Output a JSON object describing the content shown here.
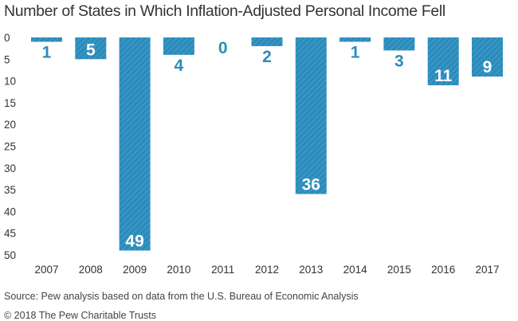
{
  "title": "Number of States in Which Inflation-Adjusted Personal Income Fell",
  "source": "Source: Pew analysis based on data from the U.S. Bureau of Economic Analysis",
  "copyright": "© 2018 The Pew Charitable Trusts",
  "colors": {
    "bar": "#2b8cbc",
    "label_light": "#ffffff",
    "label_dark": "#2b8cbc",
    "text": "#333333"
  },
  "chart_data": {
    "type": "bar",
    "orientation": "vertical-inverted",
    "categories": [
      "2007",
      "2008",
      "2009",
      "2010",
      "2011",
      "2012",
      "2013",
      "2014",
      "2015",
      "2016",
      "2017"
    ],
    "values": [
      1,
      5,
      49,
      4,
      0,
      2,
      36,
      1,
      3,
      11,
      9
    ],
    "data_labels": [
      "1",
      "5",
      "49",
      "4",
      "0",
      "2",
      "36",
      "1",
      "3",
      "11",
      "9"
    ],
    "ylim": [
      0,
      50
    ],
    "y_ticks": [
      0,
      5,
      10,
      15,
      20,
      25,
      30,
      35,
      40,
      45,
      50
    ],
    "y_inverted": true,
    "grid": false,
    "bar_pattern": "diagonal-hatch"
  }
}
